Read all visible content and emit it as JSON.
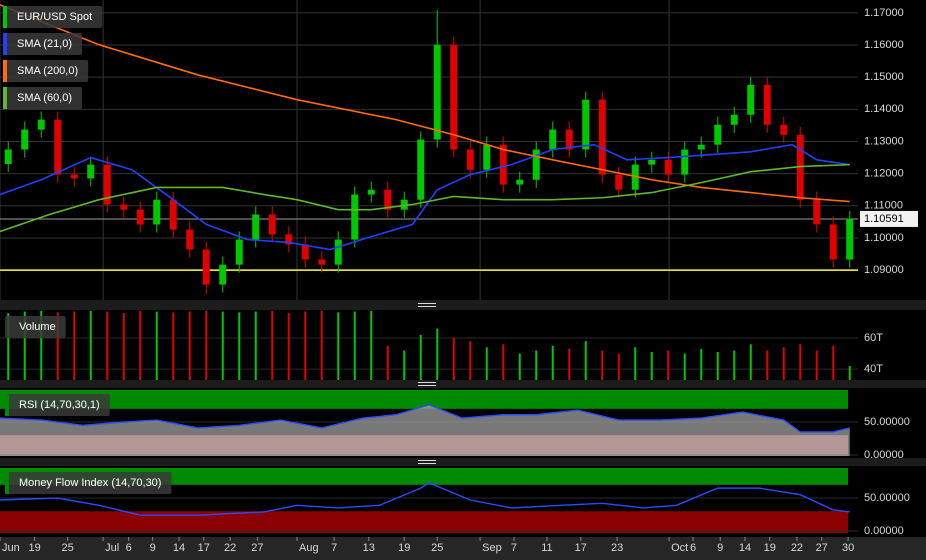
{
  "chart_data": [
    {
      "type": "candlestick",
      "name": "EUR/USD Spot",
      "color": "#00c800",
      "color_up": "#00c800",
      "color_down": "#e00000",
      "x": [
        1,
        3,
        5,
        7,
        9,
        11,
        13,
        15,
        17,
        19,
        21,
        23,
        25,
        27,
        29,
        31,
        33,
        35,
        37,
        39,
        41,
        43,
        45,
        47,
        49,
        51,
        53,
        55,
        57,
        59,
        61,
        63,
        65,
        67,
        69,
        71,
        73,
        75,
        77,
        79,
        81,
        83,
        85,
        87,
        89,
        91,
        93,
        95,
        97,
        99,
        101,
        103
      ],
      "open": [
        1.123,
        1.1275,
        1.1337,
        1.1368,
        1.1197,
        1.1185,
        1.1228,
        1.1104,
        1.1088,
        1.1042,
        1.1119,
        1.1026,
        1.0964,
        1.0855,
        1.0917,
        1.0995,
        1.1073,
        1.1011,
        1.098,
        1.0933,
        1.0917,
        1.0995,
        1.1135,
        1.115,
        1.1088,
        1.1119,
        1.1306,
        1.1601,
        1.1275,
        1.1212,
        1.129,
        1.1166,
        1.1181,
        1.1275,
        1.1337,
        1.1275,
        1.143,
        1.1197,
        1.115,
        1.1228,
        1.1243,
        1.1197,
        1.1275,
        1.129,
        1.1352,
        1.1383,
        1.1476,
        1.1352,
        1.1321,
        1.1119,
        1.1042,
        1.0933
      ],
      "high": [
        1.13,
        1.1362,
        1.1393,
        1.1393,
        1.1222,
        1.1253,
        1.1253,
        1.1129,
        1.1113,
        1.1144,
        1.1144,
        1.1051,
        1.0989,
        1.0942,
        1.102,
        1.1098,
        1.1098,
        1.1036,
        1.1005,
        1.0958,
        1.102,
        1.116,
        1.1175,
        1.1175,
        1.1144,
        1.1331,
        1.171,
        1.1626,
        1.13,
        1.1315,
        1.1315,
        1.1206,
        1.13,
        1.1362,
        1.1362,
        1.1455,
        1.1455,
        1.1222,
        1.1253,
        1.1268,
        1.1268,
        1.13,
        1.1315,
        1.1377,
        1.1408,
        1.1501,
        1.1501,
        1.1377,
        1.1346,
        1.1144,
        1.1067,
        1.1084
      ],
      "low": [
        1.1205,
        1.125,
        1.1312,
        1.1172,
        1.116,
        1.116,
        1.1079,
        1.1063,
        1.1017,
        1.1017,
        1.1001,
        1.0939,
        1.0825,
        1.083,
        1.0892,
        1.097,
        1.0986,
        1.0955,
        1.0908,
        1.0892,
        1.0892,
        1.097,
        1.111,
        1.1063,
        1.1063,
        1.1094,
        1.1281,
        1.125,
        1.1187,
        1.1187,
        1.1141,
        1.1141,
        1.1156,
        1.125,
        1.125,
        1.125,
        1.1172,
        1.1125,
        1.1125,
        1.1203,
        1.1172,
        1.1172,
        1.125,
        1.1265,
        1.1327,
        1.1358,
        1.1327,
        1.1296,
        1.1094,
        1.1017,
        1.0908,
        1.0908
      ],
      "close": [
        1.1275,
        1.1337,
        1.1368,
        1.1197,
        1.1185,
        1.1228,
        1.1104,
        1.1088,
        1.1042,
        1.1119,
        1.1026,
        1.0964,
        1.0855,
        1.0917,
        1.0995,
        1.1073,
        1.1011,
        1.098,
        1.0933,
        1.0917,
        1.0995,
        1.1135,
        1.115,
        1.1088,
        1.1119,
        1.1306,
        1.1601,
        1.1275,
        1.1212,
        1.129,
        1.1166,
        1.1181,
        1.1275,
        1.1337,
        1.1275,
        1.143,
        1.1197,
        1.115,
        1.1228,
        1.1243,
        1.1197,
        1.1275,
        1.129,
        1.1352,
        1.1383,
        1.1476,
        1.1352,
        1.1321,
        1.1119,
        1.1042,
        1.0933,
        1.10591
      ],
      "xlim": [
        0,
        104
      ],
      "ylim": [
        1.0807,
        1.174
      ],
      "yticks": [
        {
          "value": 1.17,
          "label": "1.17000"
        },
        {
          "value": 1.16,
          "label": "1.16000"
        },
        {
          "value": 1.15,
          "label": "1.15000"
        },
        {
          "value": 1.14,
          "label": "1.14000"
        },
        {
          "value": 1.13,
          "label": "1.13000"
        },
        {
          "value": 1.12,
          "label": "1.12000"
        },
        {
          "value": 1.11,
          "label": "1.11000"
        },
        {
          "value": 1.1,
          "label": "1.10000"
        },
        {
          "value": 1.09,
          "label": "1.09000"
        }
      ],
      "xticks_major": [
        {
          "value": 0,
          "label": "Jun"
        },
        {
          "value": 12.5,
          "label": "Jul"
        },
        {
          "value": 36,
          "label": "Aug"
        },
        {
          "value": 58.2,
          "label": "Sep"
        },
        {
          "value": 81.1,
          "label": "Oct"
        }
      ],
      "xticks": [
        {
          "value": 4.2,
          "label": "19"
        },
        {
          "value": 8.2,
          "label": "25"
        },
        {
          "value": 15.6,
          "label": "6"
        },
        {
          "value": 18.5,
          "label": "9"
        },
        {
          "value": 21.7,
          "label": "14"
        },
        {
          "value": 24.7,
          "label": "17"
        },
        {
          "value": 27.9,
          "label": "22"
        },
        {
          "value": 31.2,
          "label": "27"
        },
        {
          "value": 40.5,
          "label": "7"
        },
        {
          "value": 44.7,
          "label": "13"
        },
        {
          "value": 49,
          "label": "19"
        },
        {
          "value": 53,
          "label": "25"
        },
        {
          "value": 62.3,
          "label": "7"
        },
        {
          "value": 66.3,
          "label": "11"
        },
        {
          "value": 70.4,
          "label": "17"
        },
        {
          "value": 74.8,
          "label": "23"
        },
        {
          "value": 84,
          "label": "6"
        },
        {
          "value": 87.3,
          "label": "9"
        },
        {
          "value": 90.3,
          "label": "14"
        },
        {
          "value": 93.3,
          "label": "19"
        },
        {
          "value": 96.6,
          "label": "22"
        },
        {
          "value": 99.6,
          "label": "27"
        },
        {
          "value": 102.8,
          "label": "30"
        }
      ],
      "last_price": 1.10591,
      "hline": 1.09,
      "hline_color": "#ffff33",
      "grid": true,
      "overlays": [
        {
          "name": "SMA (21,0)",
          "color": "#2040ff",
          "x": [
            0,
            5,
            11,
            16,
            21,
            25,
            30,
            35,
            40,
            45,
            50,
            53,
            57,
            62,
            67,
            72,
            76,
            81,
            86,
            91,
            96,
            99,
            103
          ],
          "values": [
            1.1135,
            1.1181,
            1.125,
            1.1212,
            1.1119,
            1.1042,
            1.0995,
            1.0986,
            1.0964,
            1.1004,
            1.1042,
            1.115,
            1.1197,
            1.1228,
            1.1275,
            1.129,
            1.1243,
            1.125,
            1.1259,
            1.1268,
            1.129,
            1.1243,
            1.1228
          ]
        },
        {
          "name": "SMA (200,0)",
          "color": "#ff6a10",
          "x": [
            0,
            12,
            24,
            36,
            48,
            55,
            61,
            67,
            73,
            79,
            85,
            91,
            97,
            103
          ],
          "values": [
            1.1725,
            1.1601,
            1.1507,
            1.143,
            1.1368,
            1.1321,
            1.1275,
            1.1243,
            1.1212,
            1.1181,
            1.1157,
            1.1141,
            1.1125,
            1.1113
          ]
        },
        {
          "name": "SMA (60,0)",
          "color": "#5fb82a",
          "x": [
            0,
            6,
            12,
            19,
            27,
            32,
            36,
            41,
            45,
            50,
            55,
            61,
            67,
            73,
            79,
            85,
            91,
            97,
            103
          ],
          "values": [
            1.102,
            1.1073,
            1.1119,
            1.1157,
            1.1157,
            1.1135,
            1.1119,
            1.1088,
            1.1088,
            1.1104,
            1.1129,
            1.1119,
            1.1119,
            1.1125,
            1.1141,
            1.1172,
            1.1206,
            1.1222,
            1.1228
          ]
        }
      ]
    },
    {
      "type": "bar",
      "title": "Volume",
      "x": [
        1,
        3,
        5,
        7,
        9,
        11,
        13,
        15,
        17,
        19,
        21,
        23,
        25,
        27,
        29,
        31,
        33,
        35,
        37,
        39,
        41,
        43,
        45,
        47,
        49,
        51,
        53,
        55,
        57,
        59,
        61,
        63,
        65,
        67,
        69,
        71,
        73,
        75,
        77,
        79,
        81,
        83,
        85,
        87,
        89,
        91,
        93,
        95,
        97,
        99,
        101,
        103
      ],
      "values": [
        76000,
        77000,
        77500,
        76500,
        77000,
        77500,
        77000,
        76000,
        77500,
        77000,
        76500,
        77000,
        77500,
        77000,
        76500,
        77000,
        77500,
        76000,
        77000,
        77500,
        76500,
        77000,
        77500,
        55000,
        52000,
        62000,
        66000,
        60000,
        58000,
        54000,
        56000,
        50000,
        52000,
        55000,
        53000,
        58000,
        52000,
        50000,
        54000,
        51000,
        52000,
        50000,
        53000,
        51000,
        52000,
        56000,
        52000,
        54000,
        56000,
        52000,
        55000,
        42000
      ],
      "ylim": [
        33000,
        78000
      ],
      "yticks": [
        {
          "value": 60000,
          "label": "60T"
        },
        {
          "value": 40000,
          "label": "40T"
        }
      ]
    },
    {
      "type": "line",
      "title": "RSI (14,70,30,1)",
      "color": "#2a4cff",
      "fill": "#a0a0a0",
      "x": [
        0,
        5,
        10,
        15,
        19,
        24,
        29,
        34,
        39,
        44,
        48,
        52,
        56,
        61,
        65,
        70,
        75,
        80,
        85,
        90,
        95,
        97,
        101,
        103
      ],
      "values": [
        56,
        53,
        45,
        50,
        53,
        41,
        45,
        53,
        41,
        56,
        61,
        76,
        56,
        61,
        61,
        68,
        53,
        53,
        56,
        65,
        53,
        35,
        35,
        41
      ],
      "ylim": [
        -4.5,
        101.5
      ],
      "yticks": [
        {
          "value": 50,
          "label": "50.00000"
        },
        {
          "value": 0,
          "label": "0.00000"
        }
      ],
      "upper_level": 70,
      "lower_level": 30,
      "upper_color": "#008a00",
      "lower_color": "#f08080"
    },
    {
      "type": "line",
      "title": "Money Flow Index (14,70,30)",
      "color": "#2a4cff",
      "x": [
        0,
        7,
        12,
        17,
        24,
        32,
        36,
        41,
        46,
        51,
        52,
        57,
        62,
        68,
        73,
        78,
        82,
        87,
        92,
        97,
        101,
        103
      ],
      "values": [
        47,
        50,
        39,
        24,
        24,
        29,
        39,
        35,
        39,
        65,
        73,
        47,
        35,
        39,
        42,
        35,
        39,
        65,
        65,
        55,
        32,
        29
      ],
      "ylim": [
        -6,
        98.5
      ],
      "yticks": [
        {
          "value": 50,
          "label": "50.00000"
        },
        {
          "value": 0,
          "label": "0.00000"
        }
      ],
      "upper_level": 70,
      "lower_level": 30,
      "upper_color": "#008a00",
      "lower_color": "#8b0000"
    }
  ]
}
